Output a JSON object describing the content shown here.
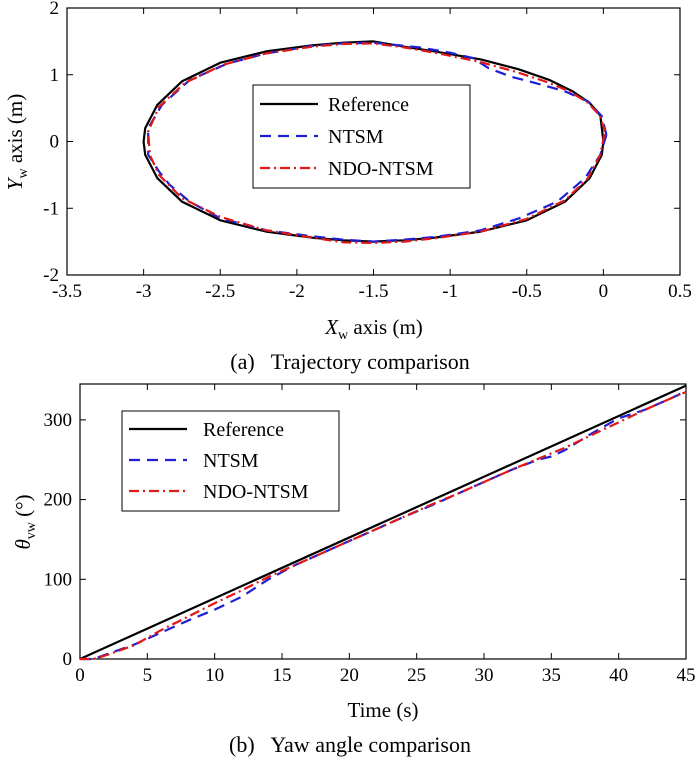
{
  "chart_data": [
    {
      "type": "line",
      "caption": "(a)   Trajectory comparison",
      "xlabel": "X_w axis (m)",
      "ylabel": "Y_w axis (m)",
      "xlim": [
        -3.5,
        0.5
      ],
      "ylim": [
        -2,
        2
      ],
      "xticks": [
        -3.5,
        -3,
        -2.5,
        -2,
        -1.5,
        -1,
        -0.5,
        0,
        0.5
      ],
      "xtick_labels": [
        "-3.5",
        "-3",
        "-2.5",
        "-2",
        "-1.5",
        "-1",
        "-0.5",
        "0",
        "0.5"
      ],
      "yticks": [
        -2,
        -1,
        0,
        1,
        2
      ],
      "ytick_labels": [
        "-2",
        "-1",
        "0",
        "1",
        "2"
      ],
      "legend_position": "center",
      "series": [
        {
          "name": "Reference",
          "color": "#000000",
          "style": "solid",
          "points": [
            [
              0.0,
              0.0
            ],
            [
              -0.02,
              0.39
            ],
            [
              -0.09,
              0.58
            ],
            [
              -0.2,
              0.75
            ],
            [
              -0.35,
              0.92
            ],
            [
              -0.55,
              1.08
            ],
            [
              -0.8,
              1.23
            ],
            [
              -1.1,
              1.35
            ],
            [
              -1.3,
              1.42
            ],
            [
              -1.5,
              1.5
            ],
            [
              -1.7,
              1.48
            ],
            [
              -1.9,
              1.44
            ],
            [
              -2.2,
              1.35
            ],
            [
              -2.5,
              1.18
            ],
            [
              -2.75,
              0.9
            ],
            [
              -2.91,
              0.55
            ],
            [
              -2.99,
              0.2
            ],
            [
              -3.0,
              0.0
            ],
            [
              -2.99,
              -0.2
            ],
            [
              -2.91,
              -0.55
            ],
            [
              -2.75,
              -0.9
            ],
            [
              -2.5,
              -1.18
            ],
            [
              -2.2,
              -1.35
            ],
            [
              -1.9,
              -1.44
            ],
            [
              -1.7,
              -1.48
            ],
            [
              -1.5,
              -1.5
            ],
            [
              -1.3,
              -1.48
            ],
            [
              -1.1,
              -1.44
            ],
            [
              -0.8,
              -1.35
            ],
            [
              -0.5,
              -1.18
            ],
            [
              -0.25,
              -0.9
            ],
            [
              -0.09,
              -0.55
            ],
            [
              -0.01,
              -0.2
            ],
            [
              0.0,
              0.0
            ]
          ]
        },
        {
          "name": "NTSM",
          "color": "#1f1fd6",
          "style": "dashed",
          "points": [
            [
              0.02,
              0.1
            ],
            [
              -0.01,
              0.38
            ],
            [
              -0.1,
              0.6
            ],
            [
              -0.25,
              0.75
            ],
            [
              -0.4,
              0.85
            ],
            [
              -0.6,
              0.97
            ],
            [
              -0.75,
              1.1
            ],
            [
              -0.85,
              1.25
            ],
            [
              -1.0,
              1.33
            ],
            [
              -1.2,
              1.41
            ],
            [
              -1.5,
              1.48
            ],
            [
              -1.7,
              1.47
            ],
            [
              -1.9,
              1.43
            ],
            [
              -2.2,
              1.32
            ],
            [
              -2.45,
              1.17
            ],
            [
              -2.7,
              0.92
            ],
            [
              -2.88,
              0.55
            ],
            [
              -2.97,
              0.2
            ],
            [
              -2.97,
              -0.2
            ],
            [
              -2.9,
              -0.45
            ],
            [
              -2.83,
              -0.65
            ],
            [
              -2.7,
              -0.9
            ],
            [
              -2.5,
              -1.15
            ],
            [
              -2.2,
              -1.33
            ],
            [
              -1.9,
              -1.42
            ],
            [
              -1.7,
              -1.47
            ],
            [
              -1.5,
              -1.5
            ],
            [
              -1.3,
              -1.47
            ],
            [
              -1.1,
              -1.43
            ],
            [
              -0.8,
              -1.33
            ],
            [
              -0.55,
              -1.15
            ],
            [
              -0.3,
              -0.9
            ],
            [
              -0.12,
              -0.55
            ],
            [
              -0.02,
              -0.2
            ],
            [
              0.02,
              0.1
            ]
          ]
        },
        {
          "name": "NDO-NTSM",
          "color": "#e01818",
          "style": "dashdot",
          "points": [
            [
              0.01,
              0.15
            ],
            [
              -0.02,
              0.38
            ],
            [
              -0.1,
              0.58
            ],
            [
              -0.22,
              0.75
            ],
            [
              -0.38,
              0.9
            ],
            [
              -0.58,
              1.05
            ],
            [
              -0.82,
              1.2
            ],
            [
              -1.1,
              1.33
            ],
            [
              -1.3,
              1.41
            ],
            [
              -1.5,
              1.47
            ],
            [
              -1.7,
              1.46
            ],
            [
              -1.9,
              1.42
            ],
            [
              -2.2,
              1.32
            ],
            [
              -2.48,
              1.15
            ],
            [
              -2.73,
              0.88
            ],
            [
              -2.9,
              0.52
            ],
            [
              -2.97,
              0.15
            ],
            [
              -2.96,
              -0.2
            ],
            [
              -2.9,
              -0.5
            ],
            [
              -2.75,
              -0.85
            ],
            [
              -2.5,
              -1.13
            ],
            [
              -2.2,
              -1.33
            ],
            [
              -1.9,
              -1.44
            ],
            [
              -1.7,
              -1.51
            ],
            [
              -1.5,
              -1.52
            ],
            [
              -1.3,
              -1.5
            ],
            [
              -1.1,
              -1.45
            ],
            [
              -0.8,
              -1.35
            ],
            [
              -0.5,
              -1.16
            ],
            [
              -0.25,
              -0.88
            ],
            [
              -0.1,
              -0.55
            ],
            [
              -0.02,
              -0.2
            ],
            [
              0.01,
              0.15
            ]
          ]
        }
      ]
    },
    {
      "type": "line",
      "caption": "(b)   Yaw angle comparison",
      "xlabel": "Time (s)",
      "ylabel": "θ_vw (°)",
      "xlim": [
        0,
        45
      ],
      "ylim": [
        0,
        345
      ],
      "xticks": [
        0,
        5,
        10,
        15,
        20,
        25,
        30,
        35,
        40,
        45
      ],
      "xtick_labels": [
        "0",
        "5",
        "10",
        "15",
        "20",
        "25",
        "30",
        "35",
        "40",
        "45"
      ],
      "yticks": [
        0,
        100,
        200,
        300
      ],
      "ytick_labels": [
        "0",
        "100",
        "200",
        "300"
      ],
      "legend_position": "top-left",
      "series": [
        {
          "name": "Reference",
          "color": "#000000",
          "style": "solid",
          "points": [
            [
              0,
              0
            ],
            [
              45,
              343
            ]
          ]
        },
        {
          "name": "NTSM",
          "color": "#1f1fd6",
          "style": "dashed",
          "points": [
            [
              0,
              0
            ],
            [
              1,
              0
            ],
            [
              2,
              6
            ],
            [
              4,
              18
            ],
            [
              6,
              33
            ],
            [
              8,
              48
            ],
            [
              10,
              62
            ],
            [
              12,
              78
            ],
            [
              14,
              100
            ],
            [
              16,
              118
            ],
            [
              18,
              133
            ],
            [
              20,
              148
            ],
            [
              22,
              163
            ],
            [
              24,
              178
            ],
            [
              26,
              192
            ],
            [
              28,
              207
            ],
            [
              30,
              222
            ],
            [
              32,
              237
            ],
            [
              34,
              250
            ],
            [
              35,
              254
            ],
            [
              36,
              262
            ],
            [
              38,
              283
            ],
            [
              40,
              302
            ],
            [
              42,
              313
            ],
            [
              44,
              328
            ],
            [
              45,
              336
            ]
          ]
        },
        {
          "name": "NDO-NTSM",
          "color": "#e01818",
          "style": "dashdot",
          "points": [
            [
              0,
              0
            ],
            [
              1,
              0
            ],
            [
              2,
              5
            ],
            [
              4,
              17
            ],
            [
              6,
              36
            ],
            [
              8,
              53
            ],
            [
              10,
              70
            ],
            [
              12,
              86
            ],
            [
              14,
              103
            ],
            [
              16,
              118
            ],
            [
              18,
              133
            ],
            [
              20,
              148
            ],
            [
              22,
              163
            ],
            [
              24,
              178
            ],
            [
              26,
              193
            ],
            [
              28,
              207
            ],
            [
              30,
              222
            ],
            [
              32,
              237
            ],
            [
              34,
              251
            ],
            [
              36,
              265
            ],
            [
              38,
              281
            ],
            [
              40,
              297
            ],
            [
              42,
              313
            ],
            [
              44,
              328
            ],
            [
              45,
              335
            ]
          ]
        }
      ]
    }
  ]
}
